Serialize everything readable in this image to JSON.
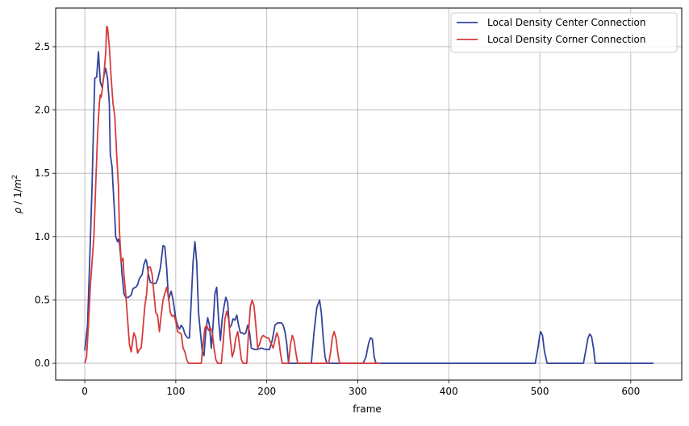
{
  "chart_data": {
    "type": "line",
    "title": "",
    "xlabel": "frame",
    "ylabel": "ρ / 1/m²",
    "ylabel_parts": {
      "rho": "ρ",
      "sep": " / 1/",
      "m": "m",
      "exp": "2"
    },
    "xlim": [
      -32,
      656
    ],
    "ylim": [
      -0.133,
      2.805
    ],
    "xticks": [
      0,
      100,
      200,
      300,
      400,
      500,
      600
    ],
    "yticks": [
      0.0,
      0.5,
      1.0,
      1.5,
      2.0,
      2.5
    ],
    "xtick_labels": [
      "0",
      "100",
      "200",
      "300",
      "400",
      "500",
      "600"
    ],
    "ytick_labels": [
      "0.0",
      "0.5",
      "1.0",
      "1.5",
      "2.0",
      "2.5"
    ],
    "grid": true,
    "legend_position": "top-right",
    "series": [
      {
        "name": "Local Density Center Connection",
        "color": "#33449a",
        "points": [
          [
            0,
            0.1
          ],
          [
            3,
            0.3
          ],
          [
            6,
            0.95
          ],
          [
            8,
            1.4
          ],
          [
            10,
            2.0
          ],
          [
            11,
            2.25
          ],
          [
            13,
            2.26
          ],
          [
            15,
            2.46
          ],
          [
            17,
            2.22
          ],
          [
            19,
            2.18
          ],
          [
            21,
            2.27
          ],
          [
            23,
            2.33
          ],
          [
            25,
            2.25
          ],
          [
            27,
            2.05
          ],
          [
            28,
            1.65
          ],
          [
            30,
            1.55
          ],
          [
            31,
            1.4
          ],
          [
            33,
            1.15
          ],
          [
            34,
            1.0
          ],
          [
            36,
            0.96
          ],
          [
            37,
            0.98
          ],
          [
            38,
            0.95
          ],
          [
            40,
            0.8
          ],
          [
            41,
            0.7
          ],
          [
            43,
            0.55
          ],
          [
            45,
            0.52
          ],
          [
            48,
            0.52
          ],
          [
            51,
            0.54
          ],
          [
            53,
            0.59
          ],
          [
            56,
            0.6
          ],
          [
            58,
            0.62
          ],
          [
            60,
            0.67
          ],
          [
            63,
            0.7
          ],
          [
            65,
            0.78
          ],
          [
            67,
            0.82
          ],
          [
            68,
            0.8
          ],
          [
            70,
            0.7
          ],
          [
            72,
            0.64
          ],
          [
            75,
            0.63
          ],
          [
            78,
            0.63
          ],
          [
            80,
            0.66
          ],
          [
            83,
            0.75
          ],
          [
            86,
            0.93
          ],
          [
            88,
            0.92
          ],
          [
            90,
            0.75
          ],
          [
            92,
            0.5
          ],
          [
            94,
            0.55
          ],
          [
            95,
            0.57
          ],
          [
            97,
            0.5
          ],
          [
            100,
            0.35
          ],
          [
            102,
            0.3
          ],
          [
            104,
            0.27
          ],
          [
            106,
            0.3
          ],
          [
            108,
            0.28
          ],
          [
            110,
            0.23
          ],
          [
            113,
            0.2
          ],
          [
            115,
            0.2
          ],
          [
            117,
            0.5
          ],
          [
            119,
            0.8
          ],
          [
            121,
            0.96
          ],
          [
            123,
            0.8
          ],
          [
            125,
            0.4
          ],
          [
            127,
            0.25
          ],
          [
            129,
            0.1
          ],
          [
            131,
            0.06
          ],
          [
            133,
            0.25
          ],
          [
            135,
            0.36
          ],
          [
            137,
            0.3
          ],
          [
            139,
            0.12
          ],
          [
            141,
            0.3
          ],
          [
            143,
            0.55
          ],
          [
            145,
            0.6
          ],
          [
            147,
            0.35
          ],
          [
            149,
            0.18
          ],
          [
            151,
            0.35
          ],
          [
            153,
            0.45
          ],
          [
            155,
            0.52
          ],
          [
            157,
            0.48
          ],
          [
            159,
            0.28
          ],
          [
            161,
            0.3
          ],
          [
            163,
            0.35
          ],
          [
            165,
            0.34
          ],
          [
            167,
            0.38
          ],
          [
            169,
            0.3
          ],
          [
            171,
            0.24
          ],
          [
            173,
            0.24
          ],
          [
            175,
            0.23
          ],
          [
            177,
            0.24
          ],
          [
            179,
            0.3
          ],
          [
            181,
            0.25
          ],
          [
            183,
            0.12
          ],
          [
            186,
            0.11
          ],
          [
            190,
            0.11
          ],
          [
            194,
            0.12
          ],
          [
            198,
            0.11
          ],
          [
            203,
            0.11
          ],
          [
            206,
            0.18
          ],
          [
            209,
            0.3
          ],
          [
            212,
            0.32
          ],
          [
            216,
            0.32
          ],
          [
            218,
            0.3
          ],
          [
            220,
            0.25
          ],
          [
            222,
            0.15
          ],
          [
            224,
            0.0
          ],
          [
            245,
            0.0
          ],
          [
            249,
            0.0
          ],
          [
            252,
            0.25
          ],
          [
            255,
            0.44
          ],
          [
            257,
            0.48
          ],
          [
            258,
            0.5
          ],
          [
            260,
            0.4
          ],
          [
            262,
            0.2
          ],
          [
            264,
            0.05
          ],
          [
            266,
            0.0
          ],
          [
            306,
            0.0
          ],
          [
            309,
            0.05
          ],
          [
            312,
            0.16
          ],
          [
            314,
            0.2
          ],
          [
            316,
            0.19
          ],
          [
            318,
            0.05
          ],
          [
            320,
            0.0
          ],
          [
            492,
            0.0
          ],
          [
            495,
            0.0
          ],
          [
            498,
            0.12
          ],
          [
            500,
            0.22
          ],
          [
            501,
            0.25
          ],
          [
            503,
            0.22
          ],
          [
            505,
            0.1
          ],
          [
            508,
            0.0
          ],
          [
            548,
            0.0
          ],
          [
            551,
            0.12
          ],
          [
            553,
            0.2
          ],
          [
            555,
            0.23
          ],
          [
            557,
            0.21
          ],
          [
            559,
            0.12
          ],
          [
            561,
            0.0
          ],
          [
            625,
            0.0
          ]
        ]
      },
      {
        "name": "Local Density Corner Connection",
        "color": "#d63c3c",
        "points": [
          [
            0,
            0.0
          ],
          [
            2,
            0.05
          ],
          [
            4,
            0.3
          ],
          [
            6,
            0.6
          ],
          [
            8,
            0.8
          ],
          [
            10,
            1.0
          ],
          [
            12,
            1.4
          ],
          [
            14,
            1.8
          ],
          [
            16,
            2.05
          ],
          [
            17,
            2.12
          ],
          [
            18,
            2.1
          ],
          [
            19,
            2.15
          ],
          [
            21,
            2.28
          ],
          [
            23,
            2.45
          ],
          [
            24,
            2.66
          ],
          [
            25,
            2.65
          ],
          [
            27,
            2.5
          ],
          [
            29,
            2.25
          ],
          [
            31,
            2.05
          ],
          [
            33,
            1.95
          ],
          [
            35,
            1.65
          ],
          [
            37,
            1.4
          ],
          [
            38,
            1.05
          ],
          [
            40,
            0.8
          ],
          [
            42,
            0.83
          ],
          [
            43,
            0.7
          ],
          [
            45,
            0.55
          ],
          [
            47,
            0.35
          ],
          [
            49,
            0.15
          ],
          [
            51,
            0.09
          ],
          [
            53,
            0.2
          ],
          [
            54,
            0.24
          ],
          [
            56,
            0.2
          ],
          [
            58,
            0.08
          ],
          [
            60,
            0.11
          ],
          [
            62,
            0.12
          ],
          [
            64,
            0.28
          ],
          [
            66,
            0.45
          ],
          [
            68,
            0.55
          ],
          [
            70,
            0.76
          ],
          [
            72,
            0.76
          ],
          [
            74,
            0.7
          ],
          [
            76,
            0.55
          ],
          [
            78,
            0.4
          ],
          [
            80,
            0.38
          ],
          [
            82,
            0.25
          ],
          [
            84,
            0.38
          ],
          [
            86,
            0.5
          ],
          [
            88,
            0.55
          ],
          [
            90,
            0.6
          ],
          [
            92,
            0.52
          ],
          [
            94,
            0.4
          ],
          [
            96,
            0.37
          ],
          [
            98,
            0.38
          ],
          [
            100,
            0.33
          ],
          [
            102,
            0.25
          ],
          [
            104,
            0.24
          ],
          [
            106,
            0.23
          ],
          [
            108,
            0.12
          ],
          [
            110,
            0.09
          ],
          [
            112,
            0.03
          ],
          [
            114,
            0.0
          ],
          [
            128,
            0.0
          ],
          [
            130,
            0.15
          ],
          [
            132,
            0.28
          ],
          [
            134,
            0.3
          ],
          [
            136,
            0.26
          ],
          [
            138,
            0.28
          ],
          [
            140,
            0.25
          ],
          [
            142,
            0.12
          ],
          [
            144,
            0.03
          ],
          [
            146,
            0.0
          ],
          [
            150,
            0.0
          ],
          [
            152,
            0.15
          ],
          [
            154,
            0.35
          ],
          [
            156,
            0.41
          ],
          [
            158,
            0.35
          ],
          [
            160,
            0.18
          ],
          [
            162,
            0.05
          ],
          [
            164,
            0.1
          ],
          [
            166,
            0.2
          ],
          [
            168,
            0.25
          ],
          [
            170,
            0.15
          ],
          [
            172,
            0.03
          ],
          [
            174,
            0.0
          ],
          [
            178,
            0.0
          ],
          [
            180,
            0.25
          ],
          [
            182,
            0.45
          ],
          [
            184,
            0.5
          ],
          [
            186,
            0.45
          ],
          [
            188,
            0.3
          ],
          [
            190,
            0.12
          ],
          [
            192,
            0.15
          ],
          [
            194,
            0.2
          ],
          [
            196,
            0.22
          ],
          [
            198,
            0.21
          ],
          [
            200,
            0.2
          ],
          [
            202,
            0.2
          ],
          [
            205,
            0.15
          ],
          [
            207,
            0.12
          ],
          [
            209,
            0.18
          ],
          [
            211,
            0.24
          ],
          [
            213,
            0.2
          ],
          [
            215,
            0.08
          ],
          [
            217,
            0.0
          ],
          [
            224,
            0.0
          ],
          [
            226,
            0.15
          ],
          [
            228,
            0.22
          ],
          [
            230,
            0.18
          ],
          [
            232,
            0.08
          ],
          [
            234,
            0.0
          ],
          [
            264,
            0.0
          ],
          [
            268,
            0.0
          ],
          [
            270,
            0.08
          ],
          [
            272,
            0.2
          ],
          [
            274,
            0.25
          ],
          [
            276,
            0.2
          ],
          [
            278,
            0.08
          ],
          [
            280,
            0.0
          ],
          [
            325,
            0.0
          ]
        ]
      }
    ]
  }
}
